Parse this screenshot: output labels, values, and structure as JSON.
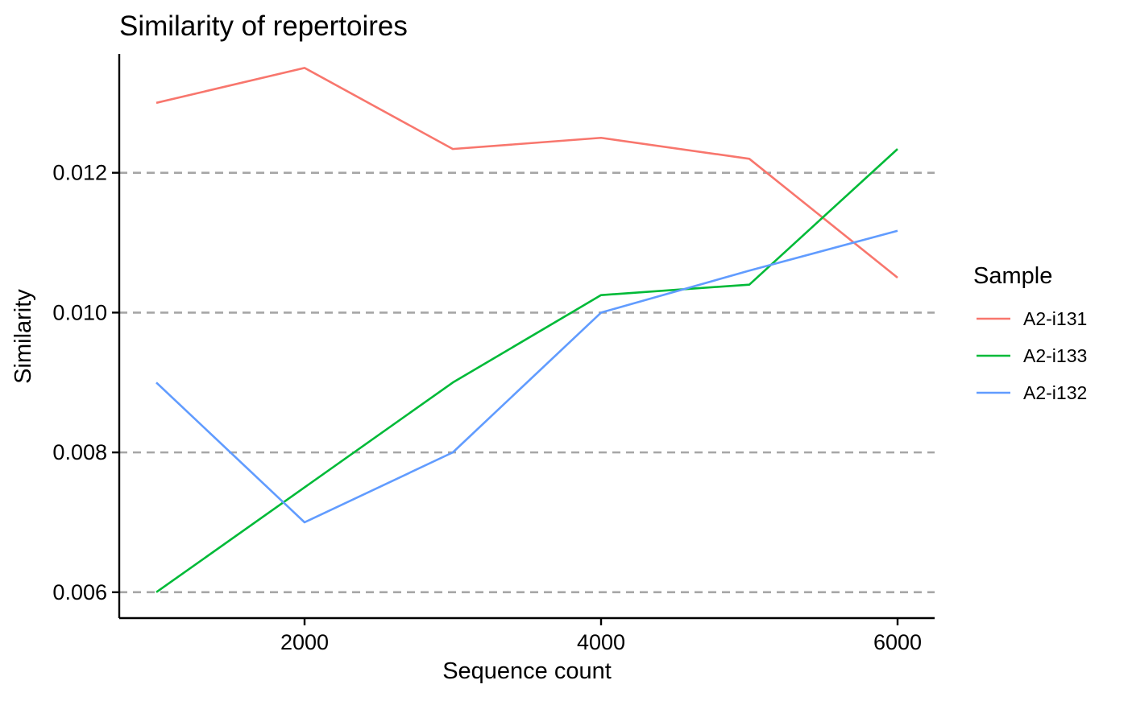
{
  "chart_data": {
    "type": "line",
    "title": "Similarity of repertoires",
    "xlabel": "Sequence count",
    "ylabel": "Similarity",
    "x": [
      1000,
      2000,
      3000,
      4000,
      5000,
      6000
    ],
    "xlim": [
      750,
      6250
    ],
    "ylim": [
      0.00563,
      0.0137
    ],
    "xticks": [
      2000,
      4000,
      6000
    ],
    "xtick_labels": [
      "2000",
      "4000",
      "6000"
    ],
    "yticks": [
      0.006,
      0.008,
      0.01,
      0.012
    ],
    "ytick_labels": [
      "0.006",
      "0.008",
      "0.010",
      "0.012"
    ],
    "grid": "horizontal dashed at y ticks",
    "legend_title": "Sample",
    "legend_position": "right",
    "series": [
      {
        "name": "A2-i131",
        "color": "#F8766D",
        "values": [
          0.013,
          0.0135,
          0.01234,
          0.0125,
          0.0122,
          0.0105
        ]
      },
      {
        "name": "A2-i133",
        "color": "#00BA38",
        "values": [
          0.006,
          0.0075,
          0.009,
          0.01025,
          0.0104,
          0.01234
        ]
      },
      {
        "name": "A2-i132",
        "color": "#619CFF",
        "values": [
          0.009,
          0.007,
          0.008,
          0.01,
          0.0106,
          0.01117
        ]
      }
    ]
  }
}
